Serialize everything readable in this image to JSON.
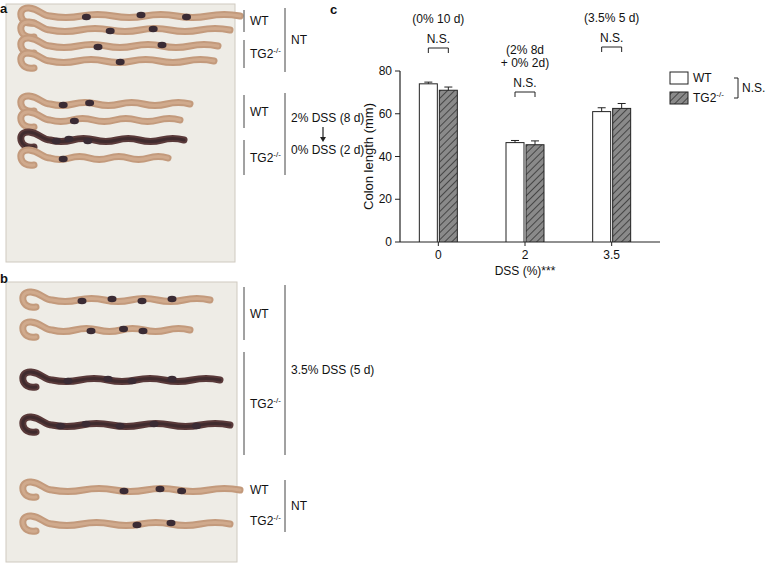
{
  "photo_panels": [
    {
      "label": "a",
      "groups": [
        {
          "treatment": [
            "NT"
          ],
          "genotypes": [
            "WT",
            "TG2-/-"
          ]
        },
        {
          "treatment": [
            "2% DSS (8 d)",
            "0% DSS (2 d)"
          ],
          "genotypes": [
            "WT",
            "TG2-/-"
          ]
        }
      ]
    },
    {
      "label": "b",
      "groups": [
        {
          "treatment": [
            "3.5% DSS (5 d)"
          ],
          "genotypes": [
            "WT",
            "TG2-/-"
          ]
        },
        {
          "treatment": [
            "NT"
          ],
          "genotypes": [
            "WT",
            "TG2-/-"
          ]
        }
      ]
    }
  ],
  "chart_panel_label": "c",
  "chart_data": {
    "type": "bar",
    "categories": [
      "0",
      "2",
      "3.5"
    ],
    "xlabel": "DSS (%)***",
    "ylabel": "Colon length (mm)",
    "ylim": [
      0,
      80
    ],
    "yticks": [
      0,
      20,
      40,
      60,
      80
    ],
    "legend": "right",
    "series": [
      {
        "name": "WT",
        "color": "#ffffff",
        "values": [
          74,
          46.5,
          61
        ],
        "errors": [
          0.8,
          1,
          1.8
        ]
      },
      {
        "name": "TG2-/-",
        "color": "#8a8a8a",
        "values": [
          71,
          45.5,
          62.5
        ],
        "errors": [
          1.5,
          1.8,
          2.3
        ]
      }
    ],
    "annotations": {
      "conditions": [
        [
          "(0% 10 d)"
        ],
        [
          "(2% 8d",
          "+ 0% 2d)"
        ],
        [
          "(3.5% 5 d)"
        ]
      ],
      "pair_tests": [
        "N.S.",
        "N.S.",
        "N.S."
      ],
      "genotype_test": "N.S."
    }
  }
}
